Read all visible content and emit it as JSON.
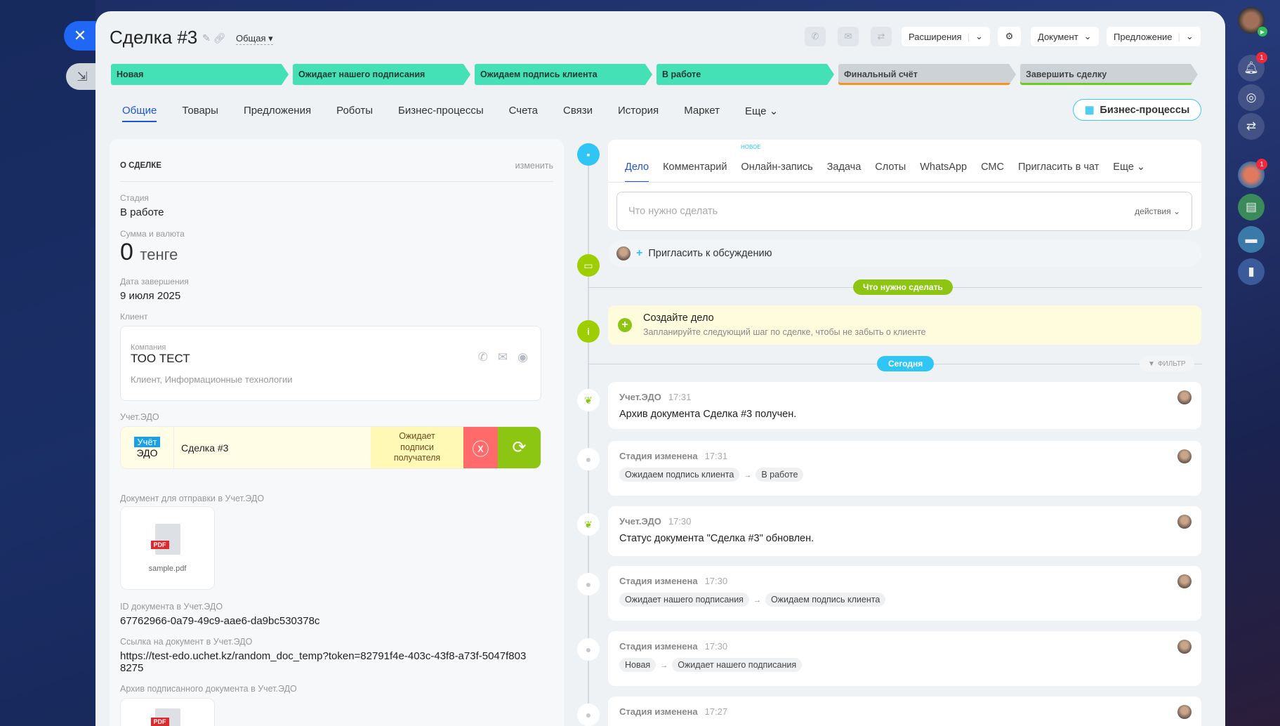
{
  "header": {
    "title": "Сделка #3",
    "category": "Общая",
    "extensions": "Расширения",
    "document": "Документ",
    "proposal": "Предложение"
  },
  "stages": [
    {
      "label": "Новая",
      "state": "done"
    },
    {
      "label": "Ожидает нашего подписания",
      "state": "done"
    },
    {
      "label": "Ожидаем подпись клиента",
      "state": "done"
    },
    {
      "label": "В работе",
      "state": "current"
    },
    {
      "label": "Финальный счёт",
      "state": "todo"
    },
    {
      "label": "Завершить сделку",
      "state": "todo"
    }
  ],
  "tabs": [
    "Общие",
    "Товары",
    "Предложения",
    "Роботы",
    "Бизнес-процессы",
    "Счета",
    "Связи",
    "История",
    "Маркет",
    "Еще"
  ],
  "bp_button": "Бизнес-процессы",
  "about": {
    "heading": "О СДЕЛКЕ",
    "edit": "изменить",
    "stage_label": "Стадия",
    "stage": "В работе",
    "sum_label": "Сумма и валюта",
    "sum": "0",
    "currency": "тенге",
    "date_label": "Дата завершения",
    "date": "9 июля 2025",
    "client_label": "Клиент",
    "company_label": "Компания",
    "company": "ТОО ТЕСТ",
    "company_desc": "Клиент, Информационные технологии",
    "edo_label": "Учет.ЭДО",
    "edo_logo_top": "Учёт",
    "edo_logo_bottom": "ЭДО",
    "edo_name": "Сделка #3",
    "edo_status": "Ожидает подписи получателя",
    "doc_label": "Документ для отправки в Учет.ЭДО",
    "doc_file": "sample.pdf",
    "pdf_badge": "PDF",
    "id_label": "ID документа в Учет.ЭДО",
    "id": "67762966-0a79-49c9-aae6-da9bc530378c",
    "link_label": "Ссылка на документ в Учет.ЭДО",
    "link": "https://test-edo.uchet.kz/random_doc_temp?token=82791f4e-403c-43f8-a73f-5047f8038275",
    "archive_label": "Архив подписанного документа в Учет.ЭДО"
  },
  "activity": {
    "tabs": [
      "Дело",
      "Комментарий",
      "Онлайн-запись",
      "Задача",
      "Слоты",
      "WhatsApp",
      "СМС",
      "Пригласить в чат",
      "Еще"
    ],
    "new_badge": "НОВОЕ",
    "placeholder": "Что нужно сделать",
    "actions": "действия"
  },
  "invite": "Пригласить к обсуждению",
  "todo_pill": "Что нужно сделать",
  "create": {
    "title": "Создайте дело",
    "subtitle": "Запланируйте следующий шаг по сделке, чтобы не забыть о клиенте"
  },
  "today": "Сегодня",
  "filter": "ФИЛЬТР",
  "timeline": [
    {
      "title": "Учет.ЭДО",
      "time": "17:31",
      "text": "Архив документа Сделка #3 получен."
    },
    {
      "title": "Стадия изменена",
      "time": "17:31",
      "from": "Ожидаем подпись клиента",
      "to": "В работе"
    },
    {
      "title": "Учет.ЭДО",
      "time": "17:30",
      "text": "Статус документа \"Сделка #3\" обновлен."
    },
    {
      "title": "Стадия изменена",
      "time": "17:30",
      "from": "Ожидает нашего подписания",
      "to": "Ожидаем подпись клиента"
    },
    {
      "title": "Стадия изменена",
      "time": "17:30",
      "from": "Новая",
      "to": "Ожидает нашего подписания"
    },
    {
      "title": "Стадия изменена",
      "time": "17:27"
    }
  ],
  "sidebar": {
    "bell_badge": "1",
    "avatar_badge": "1"
  },
  "colors": {
    "stage_done": "#44e0b6",
    "stage_todo": "#cdd2d7",
    "accent": "#2155d8",
    "edo_cancel": "#ff6b6b",
    "edo_refresh": "#8dc612"
  }
}
